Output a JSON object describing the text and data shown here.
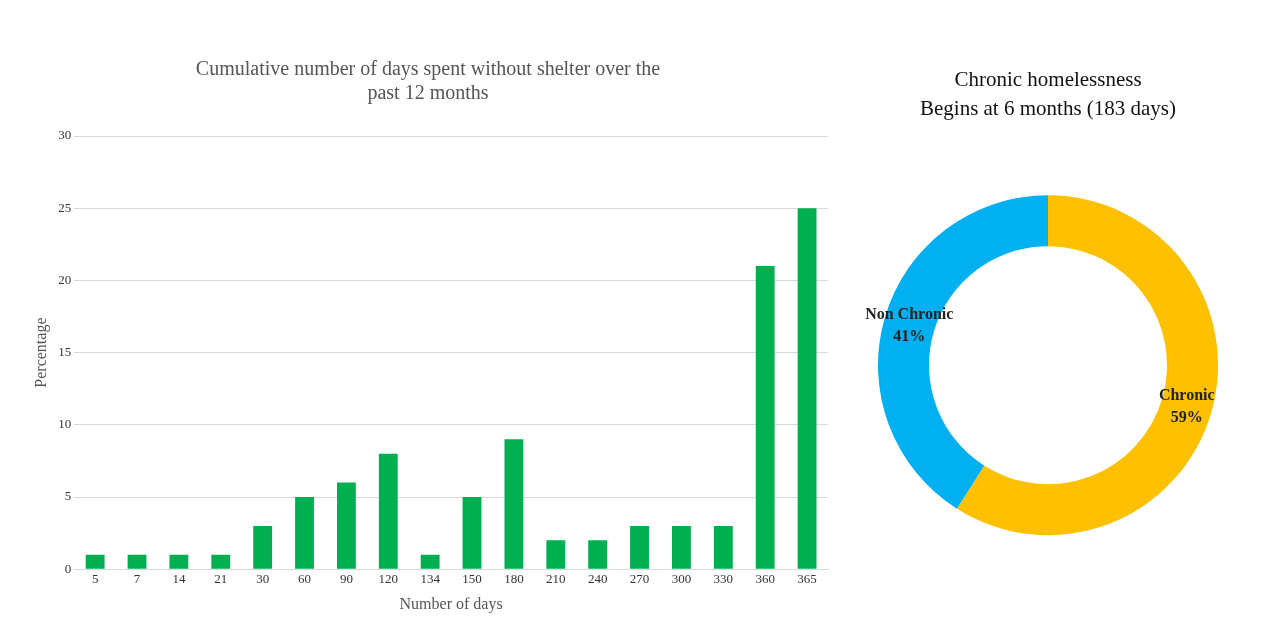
{
  "chart_data": [
    {
      "type": "bar",
      "title": [
        "Cumulative number of days spent without shelter over the",
        "past 12 months"
      ],
      "xlabel": "Number of days",
      "ylabel": "Percentage",
      "categories": [
        "5",
        "7",
        "14",
        "21",
        "30",
        "60",
        "90",
        "120",
        "134",
        "150",
        "180",
        "210",
        "240",
        "270",
        "300",
        "330",
        "360",
        "365"
      ],
      "values": [
        1,
        1,
        1,
        1,
        3,
        5,
        6,
        8,
        1,
        5,
        9,
        2,
        2,
        3,
        3,
        3,
        21,
        25
      ],
      "color": "#00b050",
      "ylim": [
        0,
        30
      ],
      "yticks": [
        0,
        5,
        10,
        15,
        20,
        25,
        30
      ],
      "grid": "y",
      "legend": false
    },
    {
      "type": "donut",
      "title": "Chronic homelessness",
      "subtitle": "Begins at 6 months (183 days)",
      "categories": [
        "Chronic",
        "Non Chronic"
      ],
      "values": [
        59,
        41
      ],
      "colors": [
        "#ffc000",
        "#00b0f0"
      ],
      "value_labels": [
        "59%",
        "41%"
      ],
      "legend": false
    }
  ]
}
